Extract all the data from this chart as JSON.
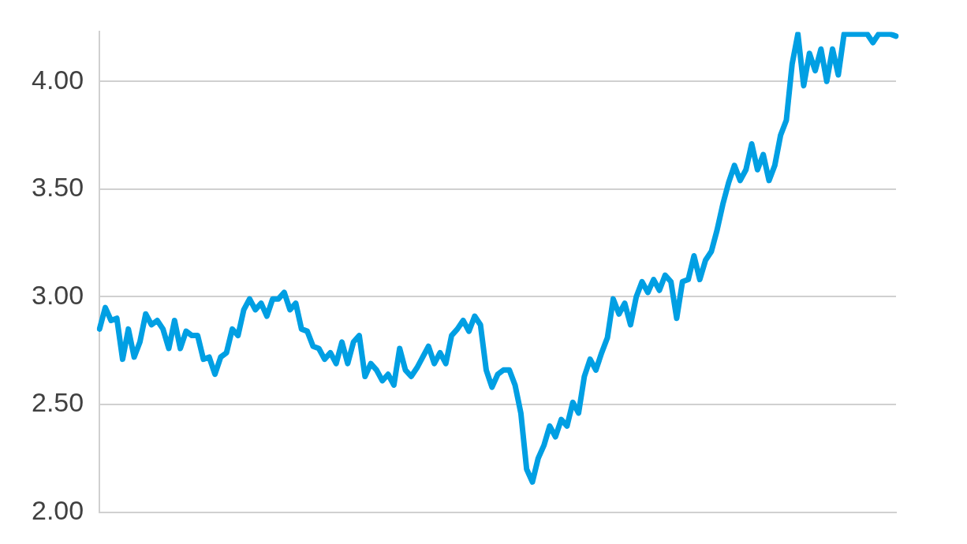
{
  "chart_data": {
    "type": "line",
    "marker": "none",
    "line_style": "solid",
    "grid": "y",
    "tick_labels": "y",
    "categories": [
      null,
      null,
      null,
      null,
      null,
      null,
      null,
      null,
      null,
      null,
      null,
      null,
      null,
      null,
      null,
      null,
      null,
      null,
      null,
      null,
      null,
      null,
      null,
      null,
      null,
      null,
      null,
      null,
      null,
      null,
      null,
      null,
      null,
      null,
      null,
      null,
      null,
      null,
      null,
      null,
      null,
      null,
      null,
      null,
      null,
      null,
      null,
      null,
      null,
      null,
      null,
      null,
      null,
      null,
      null,
      null,
      null,
      null,
      null,
      null,
      null,
      null,
      null,
      null,
      null,
      null,
      null,
      null,
      null,
      null,
      null,
      null,
      null,
      null,
      null,
      null,
      null,
      null,
      null,
      null,
      null,
      null,
      null,
      null,
      null,
      null,
      null,
      null,
      null,
      null,
      null,
      null,
      null,
      null,
      null,
      null,
      null,
      null,
      null,
      null,
      null,
      null,
      null,
      null,
      null,
      null,
      null,
      null,
      null,
      null,
      null,
      null,
      null,
      null,
      null,
      null,
      null,
      null,
      null,
      null,
      null,
      null,
      null,
      null,
      null,
      null,
      null,
      null,
      null,
      null,
      null,
      null,
      null,
      null,
      null,
      null,
      null,
      null,
      null
    ],
    "ylim": [
      2.0,
      4.23
    ],
    "yticks": [
      {
        "value": 2,
        "label": "2.00"
      },
      {
        "value": 2.5,
        "label": "2.50"
      },
      {
        "value": 3,
        "label": "3.00"
      },
      {
        "value": 3.5,
        "label": "3.50"
      },
      {
        "value": 4,
        "label": "4.00"
      }
    ],
    "series": [
      {
        "color": "#009fe3",
        "values": [
          2.85,
          2.95,
          2.89,
          2.9,
          2.71,
          2.85,
          2.72,
          2.79,
          2.92,
          2.87,
          2.89,
          2.85,
          2.76,
          2.89,
          2.76,
          2.84,
          2.82,
          2.82,
          2.71,
          2.72,
          2.64,
          2.72,
          2.74,
          2.85,
          2.82,
          2.94,
          2.99,
          2.94,
          2.97,
          2.91,
          2.99,
          2.99,
          3.02,
          2.94,
          2.97,
          2.85,
          2.84,
          2.77,
          2.76,
          2.71,
          2.74,
          2.69,
          2.79,
          2.69,
          2.79,
          2.82,
          2.63,
          2.69,
          2.66,
          2.61,
          2.64,
          2.59,
          2.76,
          2.66,
          2.63,
          2.67,
          2.72,
          2.77,
          2.69,
          2.74,
          2.69,
          2.82,
          2.85,
          2.89,
          2.84,
          2.91,
          2.87,
          2.66,
          2.58,
          2.64,
          2.66,
          2.66,
          2.59,
          2.46,
          2.2,
          2.14,
          2.25,
          2.31,
          2.4,
          2.35,
          2.43,
          2.4,
          2.51,
          2.46,
          2.63,
          2.71,
          2.66,
          2.74,
          2.81,
          2.99,
          2.92,
          2.97,
          2.87,
          3.0,
          3.07,
          3.02,
          3.08,
          3.03,
          3.1,
          3.07,
          2.9,
          3.07,
          3.08,
          3.19,
          3.08,
          3.17,
          3.21,
          3.31,
          3.43,
          3.53,
          3.61,
          3.54,
          3.59,
          3.71,
          3.59,
          3.66,
          3.54,
          3.61,
          3.75,
          3.82,
          4.08,
          4.22,
          3.98,
          4.13,
          4.05,
          4.15,
          4.0,
          4.15,
          4.03,
          4.22,
          4.22,
          4.22,
          4.22,
          4.22,
          4.18,
          4.22,
          4.22,
          4.22,
          4.21
        ]
      }
    ]
  }
}
